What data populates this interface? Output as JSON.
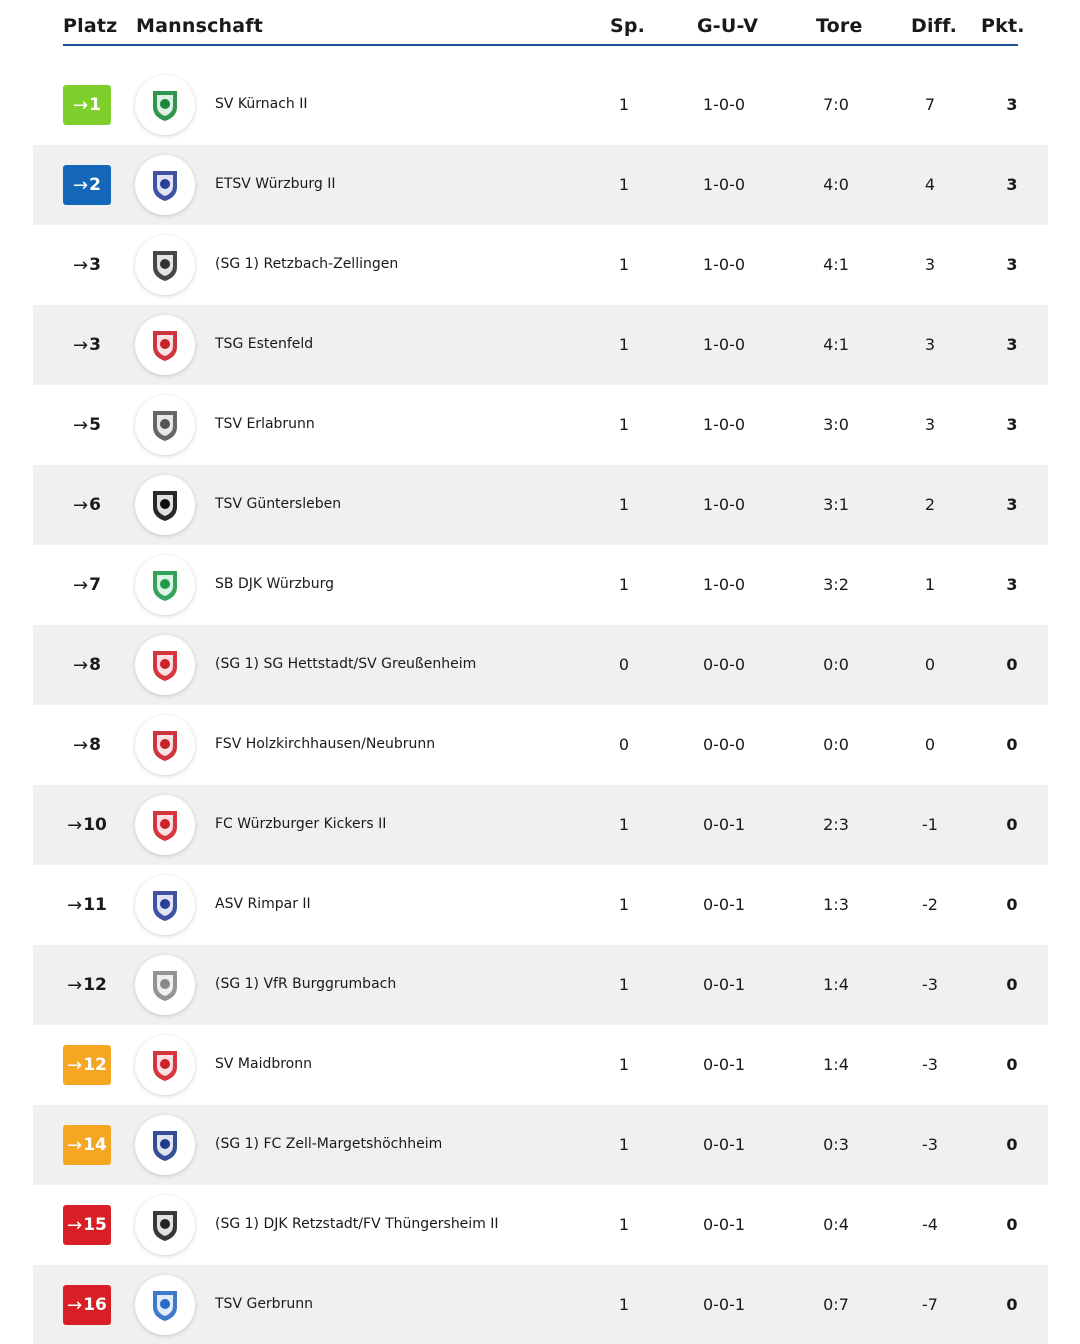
{
  "header": {
    "platz": "Platz",
    "mannschaft": "Mannschaft",
    "sp": "Sp.",
    "guv": "G-U-V",
    "tore": "Tore",
    "diff": "Diff.",
    "pkt": "Pkt."
  },
  "colors": {
    "header_line": "#1d4f91",
    "promotion": "#7fcf2c",
    "promotion_relegation": "#1467b8",
    "relegation_playoff": "#f5a623",
    "relegation": "#d91f26",
    "alt_row": "#f0f0f0"
  },
  "rows": [
    {
      "rank": "1",
      "rank_color": "green",
      "team": "SV Kürnach II",
      "logo_icon": "sv-kuernach-crest-icon",
      "logo_color": "#1a8a3a",
      "sp": "1",
      "guv": "1-0-0",
      "tore": "7:0",
      "diff": "7",
      "pkt": "3"
    },
    {
      "rank": "2",
      "rank_color": "blue",
      "team": "ETSV Würzburg II",
      "logo_icon": "etsv-wuerzburg-crest-icon",
      "logo_color": "#2a3f9a",
      "sp": "1",
      "guv": "1-0-0",
      "tore": "4:0",
      "diff": "4",
      "pkt": "3"
    },
    {
      "rank": "3",
      "rank_color": "none",
      "team": "(SG 1) Retzbach-Zellingen",
      "logo_icon": "retzbach-crest-icon",
      "logo_color": "#333333",
      "sp": "1",
      "guv": "1-0-0",
      "tore": "4:1",
      "diff": "3",
      "pkt": "3"
    },
    {
      "rank": "3",
      "rank_color": "none",
      "team": "TSG Estenfeld",
      "logo_icon": "tsg-estenfeld-crest-icon",
      "logo_color": "#c8202a",
      "sp": "1",
      "guv": "1-0-0",
      "tore": "4:1",
      "diff": "3",
      "pkt": "3"
    },
    {
      "rank": "5",
      "rank_color": "none",
      "team": "TSV Erlabrunn",
      "logo_icon": "tsv-erlabrunn-crest-icon",
      "logo_color": "#555555",
      "sp": "1",
      "guv": "1-0-0",
      "tore": "3:0",
      "diff": "3",
      "pkt": "3"
    },
    {
      "rank": "6",
      "rank_color": "none",
      "team": "TSV Güntersleben",
      "logo_icon": "tsv-guentersleben-crest-icon",
      "logo_color": "#111111",
      "sp": "1",
      "guv": "1-0-0",
      "tore": "3:1",
      "diff": "2",
      "pkt": "3"
    },
    {
      "rank": "7",
      "rank_color": "none",
      "team": "SB DJK Würzburg",
      "logo_icon": "sb-djk-wuerzburg-crest-icon",
      "logo_color": "#1e9a4a",
      "sp": "1",
      "guv": "1-0-0",
      "tore": "3:2",
      "diff": "1",
      "pkt": "3"
    },
    {
      "rank": "8",
      "rank_color": "none",
      "team": "(SG 1) SG Hettstadt/SV Greußenheim",
      "logo_icon": "sg-hettstadt-crest-icon",
      "logo_color": "#d0202a",
      "sp": "0",
      "guv": "0-0-0",
      "tore": "0:0",
      "diff": "0",
      "pkt": "0"
    },
    {
      "rank": "8",
      "rank_color": "none",
      "team": "FSV Holzkirchhausen/Neubrunn",
      "logo_icon": "fsv-holzkirchhausen-crest-icon",
      "logo_color": "#c8202a",
      "sp": "0",
      "guv": "0-0-0",
      "tore": "0:0",
      "diff": "0",
      "pkt": "0"
    },
    {
      "rank": "10",
      "rank_color": "none",
      "team": "FC Würzburger Kickers II",
      "logo_icon": "fc-wuerzburger-kickers-crest-icon",
      "logo_color": "#d0202a",
      "sp": "1",
      "guv": "0-0-1",
      "tore": "2:3",
      "diff": "-1",
      "pkt": "0"
    },
    {
      "rank": "11",
      "rank_color": "none",
      "team": "ASV Rimpar II",
      "logo_icon": "asv-rimpar-crest-icon",
      "logo_color": "#2a3f9a",
      "sp": "1",
      "guv": "0-0-1",
      "tore": "1:3",
      "diff": "-2",
      "pkt": "0"
    },
    {
      "rank": "12",
      "rank_color": "none",
      "team": "(SG 1) VfR Burggrumbach",
      "logo_icon": "vfr-burggrumbach-crest-icon",
      "logo_color": "#888888",
      "sp": "1",
      "guv": "0-0-1",
      "tore": "1:4",
      "diff": "-3",
      "pkt": "0"
    },
    {
      "rank": "12",
      "rank_color": "orange",
      "team": "SV Maidbronn",
      "logo_icon": "sv-maidbronn-crest-icon",
      "logo_color": "#d0202a",
      "sp": "1",
      "guv": "0-0-1",
      "tore": "1:4",
      "diff": "-3",
      "pkt": "0"
    },
    {
      "rank": "14",
      "rank_color": "orange",
      "team": "(SG 1) FC Zell-Margetshöchheim",
      "logo_icon": "fc-zell-crest-icon",
      "logo_color": "#1e3a8a",
      "sp": "1",
      "guv": "0-0-1",
      "tore": "0:3",
      "diff": "-3",
      "pkt": "0"
    },
    {
      "rank": "15",
      "rank_color": "red",
      "team": "(SG 1) DJK Retzstadt/FV Thüngersheim II",
      "logo_icon": "djk-retzstadt-crest-icon",
      "logo_color": "#222222",
      "sp": "1",
      "guv": "0-0-1",
      "tore": "0:4",
      "diff": "-4",
      "pkt": "0"
    },
    {
      "rank": "16",
      "rank_color": "red",
      "team": "TSV Gerbrunn",
      "logo_icon": "tsv-gerbrunn-crest-icon",
      "logo_color": "#2a6ac8",
      "sp": "1",
      "guv": "0-0-1",
      "tore": "0:7",
      "diff": "-7",
      "pkt": "0"
    }
  ]
}
